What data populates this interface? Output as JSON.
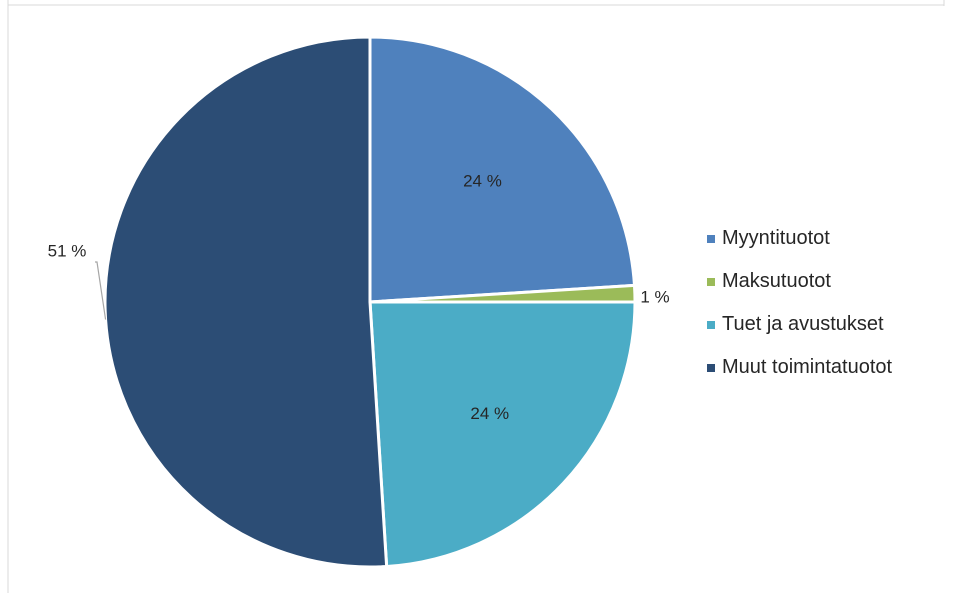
{
  "chart_data": {
    "type": "pie",
    "title": "",
    "categories": [
      "Myyntituotot",
      "Maksutuotot",
      "Tuet ja avustukset",
      "Muut toimintatuotot"
    ],
    "values": [
      24,
      1,
      24,
      51
    ],
    "value_labels": [
      "24 %",
      "1 %",
      "24 %",
      "51 %"
    ],
    "colors": [
      "#4f81bd",
      "#9bbb59",
      "#4bacc6",
      "#2c4d75"
    ],
    "legend_position": "right"
  }
}
